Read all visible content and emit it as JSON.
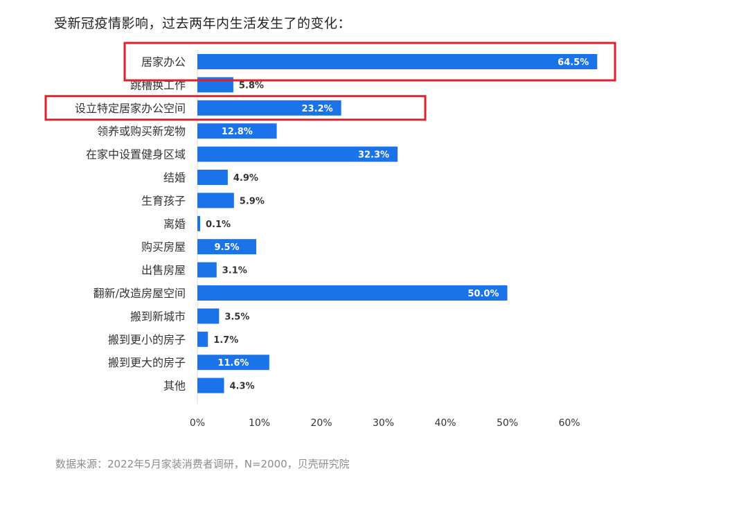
{
  "chart_data": {
    "type": "bar",
    "orientation": "horizontal",
    "title": "受新冠疫情影响，过去两年内生活发生了的变化：",
    "categories": [
      "居家办公",
      "跳槽换工作",
      "设立特定居家办公空间",
      "领养或购买新宠物",
      "在家中设置健身区域",
      "结婚",
      "生育孩子",
      "离婚",
      "购买房屋",
      "出售房屋",
      "翻新/改造房屋空间",
      "搬到新城市",
      "搬到更小的房子",
      "搬到更大的房子",
      "其他"
    ],
    "values": [
      64.5,
      5.8,
      23.2,
      12.8,
      32.3,
      4.9,
      5.9,
      0.1,
      9.5,
      3.1,
      50.0,
      3.5,
      1.7,
      11.6,
      4.3
    ],
    "value_labels": [
      "64.5%",
      "5.8%",
      "23.2%",
      "12.8%",
      "32.3%",
      "4.9%",
      "5.9%",
      "0.1%",
      "9.5%",
      "3.1%",
      "50.0%",
      "3.5%",
      "1.7%",
      "11.6%",
      "4.3%"
    ],
    "xlim": [
      0,
      65
    ],
    "x_ticks": [
      "0%",
      "10%",
      "20%",
      "30%",
      "40%",
      "50%",
      "60%"
    ],
    "x_tick_values": [
      0,
      10,
      20,
      30,
      40,
      50,
      60
    ],
    "highlighted_categories": [
      "居家办公",
      "设立特定居家办公空间"
    ],
    "grid": false,
    "legend": "none",
    "source": "数据来源：2022年5月家装消费者调研，N=2000，贝壳研究院",
    "colors": {
      "bar": "#1a73e8",
      "highlight_box": "#e0202a",
      "label_inside": "#ffffff",
      "label_outside": "#333333",
      "category_text": "#333333",
      "tick_text": "#333333",
      "axis_line": "#d9d9d9"
    }
  }
}
